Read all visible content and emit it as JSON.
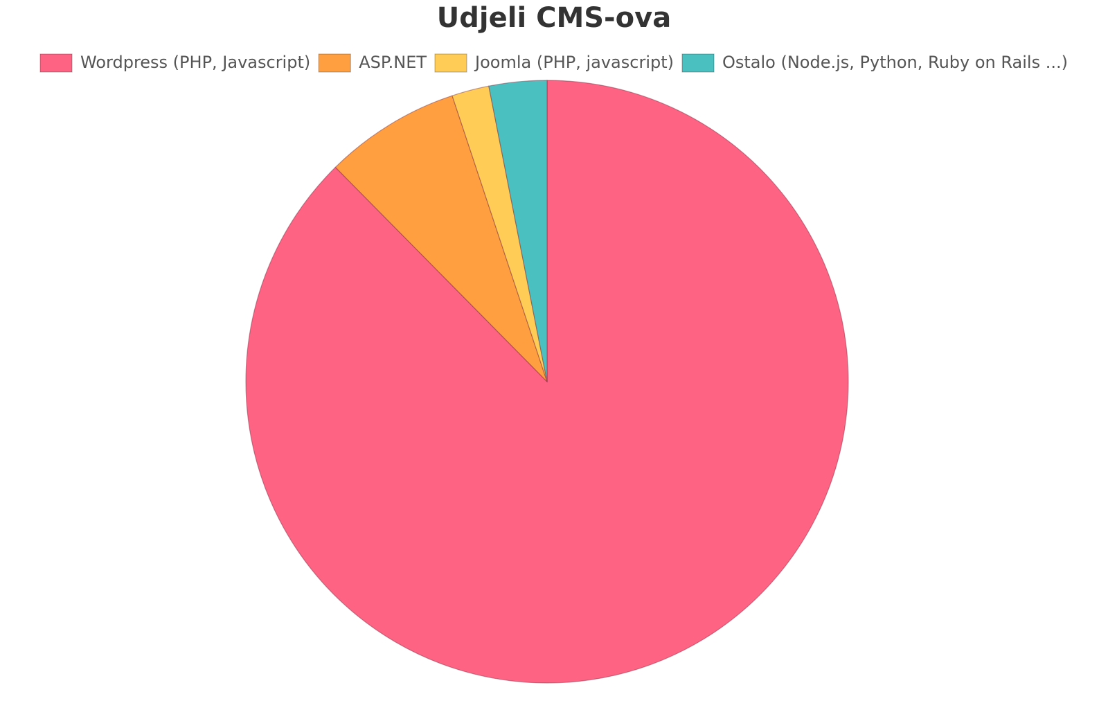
{
  "chart_data": {
    "type": "pie",
    "title": "Udjeli CMS-ova",
    "categories": [
      "Wordpress (PHP, Javascript)",
      "ASP.NET",
      "Joomla (PHP, javascript)",
      "Ostalo (Node.js, Python, Ruby on Rails ...)"
    ],
    "values": [
      87.6,
      7.3,
      2.0,
      3.1
    ],
    "colors": [
      "#ff6384",
      "#ff9f40",
      "#ffcd56",
      "#4bc0c0"
    ],
    "legend": "top"
  }
}
